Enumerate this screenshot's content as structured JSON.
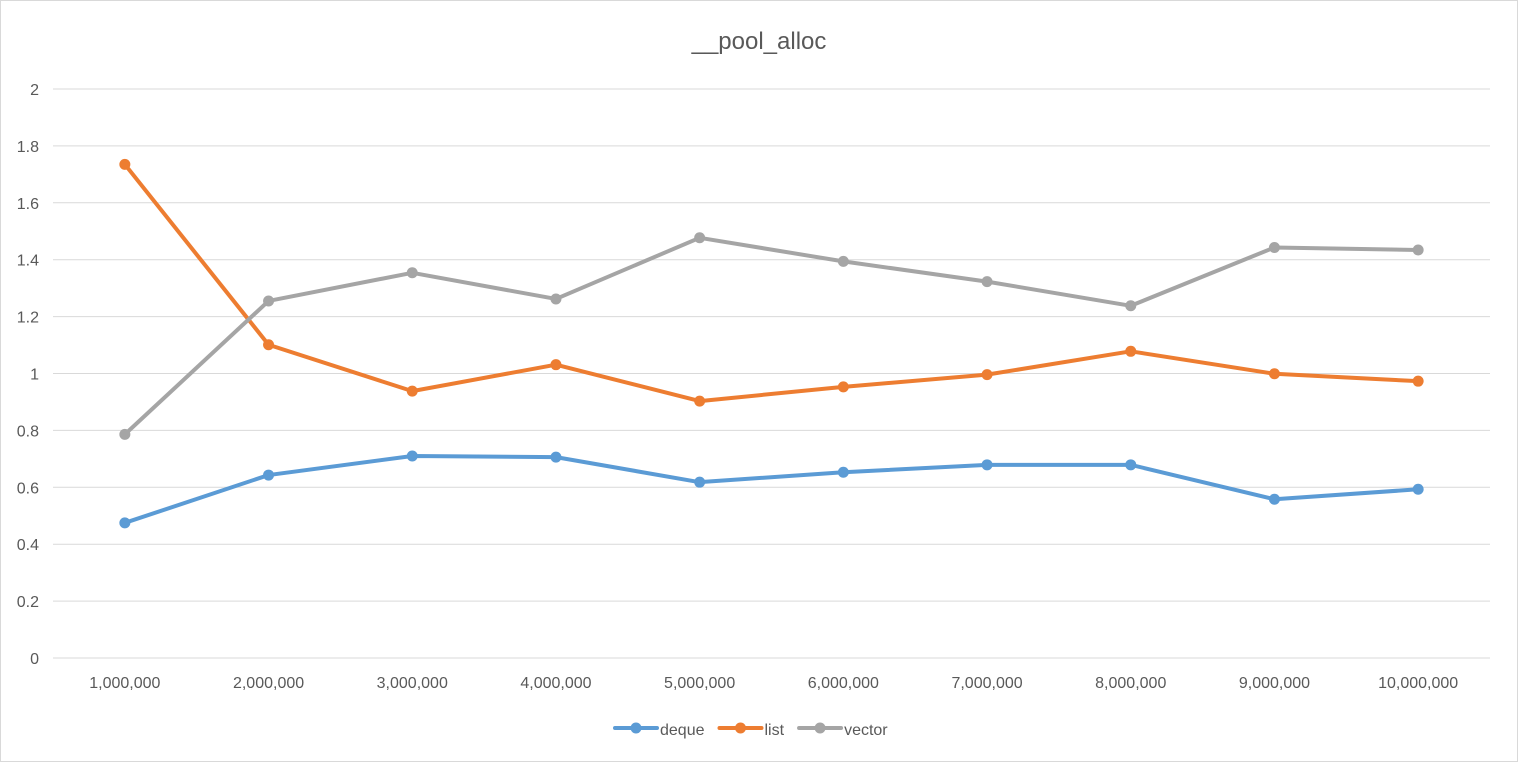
{
  "chart_data": {
    "type": "line",
    "title": "__pool_alloc",
    "xlabel": "",
    "ylabel": "",
    "categories": [
      "1,000,000",
      "2,000,000",
      "3,000,000",
      "4,000,000",
      "5,000,000",
      "6,000,000",
      "7,000,000",
      "8,000,000",
      "9,000,000",
      "10,000,000"
    ],
    "ylim": [
      0,
      2
    ],
    "yticks": [
      "0",
      "0.2",
      "0.4",
      "0.6",
      "0.8",
      "1",
      "1.2",
      "1.4",
      "1.6",
      "1.8",
      "2"
    ],
    "grid": true,
    "legend_position": "bottom",
    "series": [
      {
        "name": "deque",
        "color": "#5b9bd5",
        "values": [
          0.475,
          0.643,
          0.71,
          0.706,
          0.618,
          0.653,
          0.679,
          0.679,
          0.558,
          0.593
        ]
      },
      {
        "name": "list",
        "color": "#ed7d31",
        "values": [
          1.735,
          1.101,
          0.938,
          1.031,
          0.903,
          0.953,
          0.996,
          1.078,
          0.999,
          0.973
        ]
      },
      {
        "name": "vector",
        "color": "#a5a5a5",
        "values": [
          0.786,
          1.255,
          1.354,
          1.262,
          1.477,
          1.394,
          1.323,
          1.238,
          1.443,
          1.434
        ]
      }
    ]
  }
}
